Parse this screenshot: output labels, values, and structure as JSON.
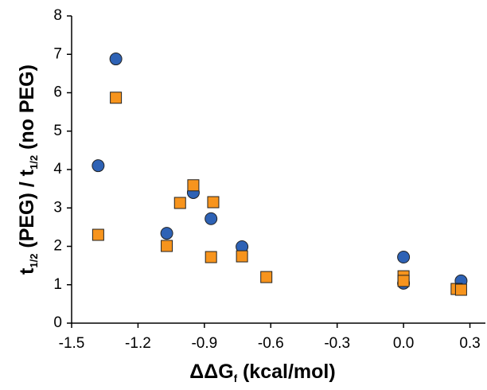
{
  "chart_data": {
    "type": "scatter",
    "xlabel_parts": [
      {
        "text": "ΔΔG"
      },
      {
        "text": "f",
        "sub": true
      },
      {
        "text": " (kcal/mol)"
      }
    ],
    "ylabel_parts": [
      {
        "text": "t"
      },
      {
        "text": "1/2",
        "sub": true
      },
      {
        "text": " (PEG) / t"
      },
      {
        "text": "1/2",
        "sub": true
      },
      {
        "text": " (no PEG)"
      }
    ],
    "xlim": [
      -1.5,
      0.37
    ],
    "xticks": [
      -1.5,
      -1.2,
      -0.9,
      -0.6,
      -0.3,
      {
        "value": 0,
        "label": "0.0"
      },
      0.3
    ],
    "ylim": [
      0,
      8
    ],
    "yticks": [
      0,
      1,
      2,
      3,
      4,
      5,
      6,
      7,
      8
    ],
    "grid": false,
    "series": [
      {
        "marker": "circle",
        "color": "#2e62b5",
        "x": [
          -1.38,
          -1.3,
          -1.07,
          -0.95,
          -0.87,
          -0.73,
          0,
          0,
          0.26
        ],
        "values": [
          4.1,
          6.88,
          2.34,
          3.4,
          2.72,
          1.99,
          1.72,
          1.04,
          1.1
        ]
      },
      {
        "marker": "square",
        "color": "#f7941d",
        "x": [
          -1.38,
          -1.3,
          -1.07,
          -1.01,
          -0.95,
          -0.86,
          -0.87,
          -0.73,
          -0.62,
          0,
          0,
          0.24,
          0.26
        ],
        "values": [
          2.3,
          5.87,
          2.01,
          3.13,
          3.59,
          3.15,
          1.72,
          1.74,
          1.2,
          1.22,
          1.1,
          0.89,
          0.87
        ]
      }
    ]
  }
}
